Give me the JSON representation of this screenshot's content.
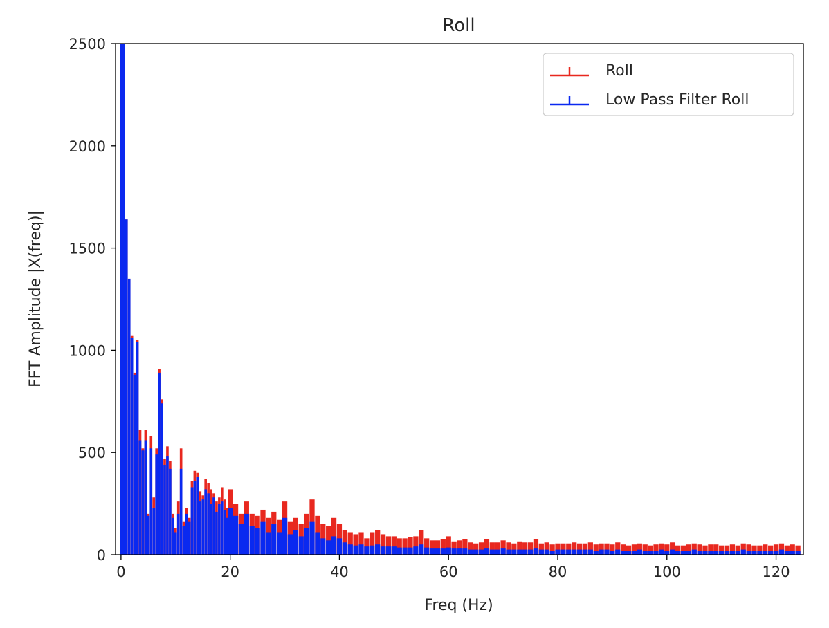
{
  "chart_data": {
    "type": "bar",
    "title": "Roll",
    "xlabel": "Freq (Hz)",
    "ylabel": "FFT Amplitude |X(freq)|",
    "xlim": [
      -1,
      125
    ],
    "ylim": [
      0,
      2500
    ],
    "xticks": [
      0,
      20,
      40,
      60,
      80,
      100,
      120
    ],
    "yticks": [
      0,
      500,
      1000,
      1500,
      2000,
      2500
    ],
    "bin_width_hz": 0.5,
    "grid": false,
    "legend": {
      "position": "upper right"
    },
    "series": [
      {
        "name": "Roll",
        "color": "#e8281f",
        "x": [
          0,
          0.5,
          1,
          1.5,
          2,
          2.5,
          3,
          3.5,
          4,
          4.5,
          5,
          5.5,
          6,
          6.5,
          7,
          7.5,
          8,
          8.5,
          9,
          9.5,
          10,
          10.5,
          11,
          11.5,
          12,
          12.5,
          13,
          13.5,
          14,
          14.5,
          15,
          15.5,
          16,
          16.5,
          17,
          17.5,
          18,
          18.5,
          19,
          19.5,
          20,
          21,
          22,
          23,
          24,
          25,
          26,
          27,
          28,
          29,
          30,
          31,
          32,
          33,
          34,
          35,
          36,
          37,
          38,
          39,
          40,
          41,
          42,
          43,
          44,
          45,
          46,
          47,
          48,
          49,
          50,
          51,
          52,
          53,
          54,
          55,
          56,
          57,
          58,
          59,
          60,
          61,
          62,
          63,
          64,
          65,
          66,
          67,
          68,
          69,
          70,
          71,
          72,
          73,
          74,
          75,
          76,
          77,
          78,
          79,
          80,
          81,
          82,
          83,
          84,
          85,
          86,
          87,
          88,
          89,
          90,
          91,
          92,
          93,
          94,
          95,
          96,
          97,
          98,
          99,
          100,
          101,
          102,
          103,
          104,
          105,
          106,
          107,
          108,
          109,
          110,
          111,
          112,
          113,
          114,
          115,
          116,
          117,
          118,
          119,
          120,
          121,
          122,
          123,
          124
        ],
        "values": [
          2500,
          2500,
          1640,
          1350,
          1070,
          890,
          1050,
          610,
          520,
          610,
          200,
          580,
          280,
          520,
          910,
          760,
          470,
          530,
          460,
          200,
          130,
          260,
          520,
          160,
          230,
          180,
          360,
          410,
          400,
          310,
          290,
          370,
          350,
          320,
          300,
          260,
          280,
          330,
          270,
          230,
          320,
          250,
          200,
          260,
          200,
          190,
          220,
          180,
          210,
          170,
          260,
          160,
          180,
          150,
          200,
          270,
          190,
          150,
          140,
          180,
          150,
          120,
          110,
          100,
          110,
          80,
          110,
          120,
          100,
          90,
          90,
          80,
          80,
          85,
          90,
          120,
          80,
          70,
          70,
          75,
          90,
          65,
          70,
          75,
          60,
          55,
          60,
          75,
          60,
          60,
          70,
          60,
          55,
          65,
          60,
          60,
          75,
          55,
          60,
          50,
          55,
          55,
          55,
          60,
          55,
          55,
          60,
          50,
          55,
          55,
          50,
          60,
          50,
          45,
          50,
          55,
          50,
          45,
          50,
          55,
          50,
          60,
          45,
          45,
          50,
          55,
          50,
          45,
          50,
          50,
          45,
          45,
          50,
          45,
          55,
          50,
          45,
          45,
          50,
          45,
          50,
          55,
          45,
          50,
          45
        ]
      },
      {
        "name": "Low Pass Filter Roll",
        "color": "#0a29f0",
        "x": [
          0,
          0.5,
          1,
          1.5,
          2,
          2.5,
          3,
          3.5,
          4,
          4.5,
          5,
          5.5,
          6,
          6.5,
          7,
          7.5,
          8,
          8.5,
          9,
          9.5,
          10,
          10.5,
          11,
          11.5,
          12,
          12.5,
          13,
          13.5,
          14,
          14.5,
          15,
          15.5,
          16,
          16.5,
          17,
          17.5,
          18,
          18.5,
          19,
          19.5,
          20,
          21,
          22,
          23,
          24,
          25,
          26,
          27,
          28,
          29,
          30,
          31,
          32,
          33,
          34,
          35,
          36,
          37,
          38,
          39,
          40,
          41,
          42,
          43,
          44,
          45,
          46,
          47,
          48,
          49,
          50,
          51,
          52,
          53,
          54,
          55,
          56,
          57,
          58,
          59,
          60,
          61,
          62,
          63,
          64,
          65,
          66,
          67,
          68,
          69,
          70,
          71,
          72,
          73,
          74,
          75,
          76,
          77,
          78,
          79,
          80,
          81,
          82,
          83,
          84,
          85,
          86,
          87,
          88,
          89,
          90,
          91,
          92,
          93,
          94,
          95,
          96,
          97,
          98,
          99,
          100,
          101,
          102,
          103,
          104,
          105,
          106,
          107,
          108,
          109,
          110,
          111,
          112,
          113,
          114,
          115,
          116,
          117,
          118,
          119,
          120,
          121,
          122,
          123,
          124
        ],
        "values": [
          2500,
          2500,
          1640,
          1350,
          1060,
          880,
          1040,
          560,
          510,
          560,
          190,
          520,
          230,
          490,
          890,
          740,
          440,
          480,
          420,
          180,
          110,
          200,
          420,
          140,
          200,
          160,
          330,
          360,
          380,
          260,
          270,
          320,
          300,
          250,
          280,
          210,
          250,
          260,
          220,
          180,
          230,
          190,
          150,
          200,
          140,
          130,
          160,
          110,
          150,
          110,
          180,
          100,
          120,
          90,
          130,
          160,
          110,
          80,
          70,
          90,
          80,
          60,
          50,
          45,
          50,
          40,
          45,
          50,
          40,
          40,
          40,
          35,
          35,
          35,
          40,
          50,
          35,
          30,
          30,
          30,
          35,
          30,
          30,
          30,
          25,
          25,
          25,
          30,
          25,
          25,
          30,
          25,
          25,
          25,
          25,
          25,
          30,
          25,
          25,
          20,
          25,
          25,
          25,
          25,
          25,
          25,
          25,
          20,
          25,
          25,
          20,
          25,
          20,
          20,
          20,
          25,
          20,
          20,
          20,
          25,
          20,
          25,
          20,
          20,
          20,
          25,
          20,
          20,
          20,
          20,
          20,
          20,
          20,
          20,
          25,
          20,
          20,
          20,
          20,
          20,
          20,
          25,
          20,
          20,
          20
        ]
      }
    ]
  }
}
